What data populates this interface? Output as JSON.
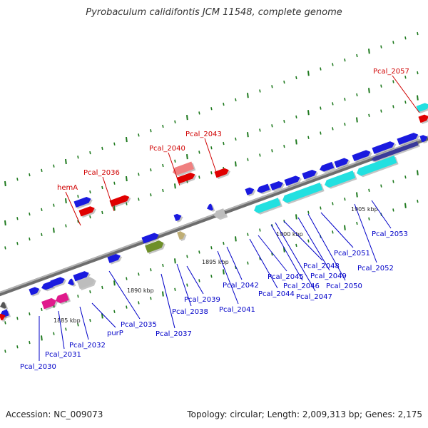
{
  "title": "Pyrobaculum calidifontis JCM 11548, complete genome",
  "footer": {
    "accession": "Accession: NC_009073",
    "topology": "Topology: circular; Length: 2,009,313 bp; Genes: 2,175"
  },
  "colors": {
    "backbone": "#8a8a8a",
    "cds": "#1a1adf",
    "cds_highlight": "#e00000",
    "rna": "#22e0e0",
    "pseudo": "#e01a8c",
    "other": "#bdbdbd",
    "olive": "#6e8f2a",
    "tan": "#bfae74",
    "pink": "#f08080",
    "tick": "#1f7a1f",
    "label_blue": "#0000c8",
    "label_red": "#d00000"
  },
  "scale_labels": [
    "1885 kbp",
    "1890 kbp",
    "1895 kbp",
    "1900 kbp",
    "1905 kbp"
  ],
  "gene_labels": [
    {
      "text": "Pcal_2057",
      "color": "red"
    },
    {
      "text": "Pcal_2043",
      "color": "red"
    },
    {
      "text": "Pcal_2040",
      "color": "red"
    },
    {
      "text": "Pcal_2036",
      "color": "red"
    },
    {
      "text": "hemA",
      "color": "red"
    },
    {
      "text": "Pcal_2053",
      "color": "blue"
    },
    {
      "text": "Pcal_2052",
      "color": "blue"
    },
    {
      "text": "Pcal_2051",
      "color": "blue"
    },
    {
      "text": "Pcal_2050",
      "color": "blue"
    },
    {
      "text": "Pcal_2049",
      "color": "blue"
    },
    {
      "text": "Pcal_2048",
      "color": "blue"
    },
    {
      "text": "Pcal_2047",
      "color": "blue"
    },
    {
      "text": "Pcal_2046",
      "color": "blue"
    },
    {
      "text": "Pcal_2045",
      "color": "blue"
    },
    {
      "text": "Pcal_2044",
      "color": "blue"
    },
    {
      "text": "Pcal_2042",
      "color": "blue"
    },
    {
      "text": "Pcal_2041",
      "color": "blue"
    },
    {
      "text": "Pcal_2039",
      "color": "blue"
    },
    {
      "text": "Pcal_2038",
      "color": "blue"
    },
    {
      "text": "Pcal_2037",
      "color": "blue"
    },
    {
      "text": "Pcal_2035",
      "color": "blue"
    },
    {
      "text": "purP",
      "color": "blue"
    },
    {
      "text": "Pcal_2032",
      "color": "blue"
    },
    {
      "text": "Pcal_2031",
      "color": "blue"
    },
    {
      "text": "Pcal_2030",
      "color": "blue"
    }
  ]
}
